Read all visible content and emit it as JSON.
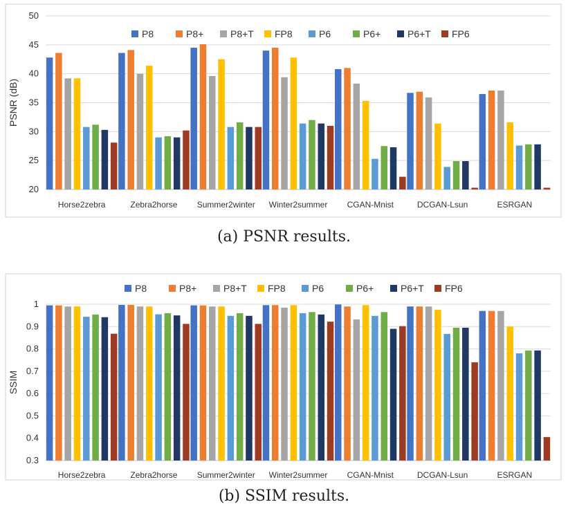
{
  "captions": {
    "a": "(a) PSNR results.",
    "b": "(b) SSIM results."
  },
  "chart_data": [
    {
      "type": "bar",
      "title": "",
      "xlabel": "",
      "ylabel": "PSNR (dB)",
      "ylim": [
        20,
        50
      ],
      "yticks": [
        20,
        25,
        30,
        35,
        40,
        45,
        50
      ],
      "grid": true,
      "legend_position": "top",
      "categories": [
        "Horse2zebra",
        "Zebra2horse",
        "Summer2winter",
        "Winter2summer",
        "CGAN-Mnist",
        "DCGAN-Lsun",
        "ESRGAN"
      ],
      "series": [
        {
          "name": "P8",
          "color": "#4472C4",
          "values": [
            42.8,
            43.6,
            44.5,
            44.0,
            40.8,
            36.7,
            36.5
          ]
        },
        {
          "name": "P8+",
          "color": "#ED7D31",
          "values": [
            43.6,
            44.1,
            45.1,
            44.5,
            41.0,
            36.9,
            37.1
          ]
        },
        {
          "name": "P8+T",
          "color": "#A5A5A5",
          "values": [
            39.2,
            40.0,
            39.6,
            39.4,
            38.3,
            35.9,
            37.1
          ]
        },
        {
          "name": "FP8",
          "color": "#FFC000",
          "values": [
            39.2,
            41.4,
            42.5,
            42.8,
            35.3,
            31.4,
            31.6
          ]
        },
        {
          "name": "P6",
          "color": "#5B9BD5",
          "values": [
            30.8,
            29.0,
            30.8,
            31.4,
            25.3,
            23.9,
            27.6
          ]
        },
        {
          "name": "P6+",
          "color": "#70AD47",
          "values": [
            31.2,
            29.2,
            31.6,
            32.0,
            27.5,
            24.9,
            27.8
          ]
        },
        {
          "name": "P6+T",
          "color": "#1F3864",
          "values": [
            30.3,
            29.0,
            30.8,
            31.4,
            27.3,
            24.9,
            27.8
          ]
        },
        {
          "name": "FP6",
          "color": "#9E3B24",
          "values": [
            28.1,
            30.2,
            30.8,
            31.0,
            22.2,
            20.3,
            20.3
          ]
        }
      ]
    },
    {
      "type": "bar",
      "title": "",
      "xlabel": "",
      "ylabel": "SSIM",
      "ylim": [
        0.3,
        1.0
      ],
      "yticks": [
        "0.3",
        "0.4",
        "0.5",
        "0.6",
        "0.7",
        "0.8",
        "0.9",
        "1"
      ],
      "grid": true,
      "legend_position": "top",
      "categories": [
        "Horse2zebra",
        "Zebra2horse",
        "Summer2winter",
        "Winter2summer",
        "CGAN-Mnist",
        "DCGAN-Lsun",
        "ESRGAN"
      ],
      "series": [
        {
          "name": "P8",
          "color": "#4472C4",
          "values": [
            0.995,
            0.997,
            0.995,
            0.996,
            0.999,
            0.99,
            0.97
          ]
        },
        {
          "name": "P8+",
          "color": "#ED7D31",
          "values": [
            0.995,
            0.997,
            0.995,
            0.996,
            0.99,
            0.99,
            0.97
          ]
        },
        {
          "name": "P8+T",
          "color": "#A5A5A5",
          "values": [
            0.99,
            0.99,
            0.99,
            0.985,
            0.932,
            0.99,
            0.97
          ]
        },
        {
          "name": "FP8",
          "color": "#FFC000",
          "values": [
            0.99,
            0.99,
            0.99,
            0.996,
            0.996,
            0.975,
            0.9
          ]
        },
        {
          "name": "P6",
          "color": "#5B9BD5",
          "values": [
            0.944,
            0.955,
            0.948,
            0.96,
            0.948,
            0.867,
            0.78
          ]
        },
        {
          "name": "P6+",
          "color": "#70AD47",
          "values": [
            0.954,
            0.96,
            0.96,
            0.965,
            0.965,
            0.895,
            0.793
          ]
        },
        {
          "name": "P6+T",
          "color": "#1F3864",
          "values": [
            0.942,
            0.95,
            0.948,
            0.954,
            0.89,
            0.895,
            0.793
          ]
        },
        {
          "name": "FP6",
          "color": "#9E3B24",
          "values": [
            0.868,
            0.912,
            0.912,
            0.922,
            0.902,
            0.74,
            0.405
          ]
        }
      ]
    }
  ]
}
